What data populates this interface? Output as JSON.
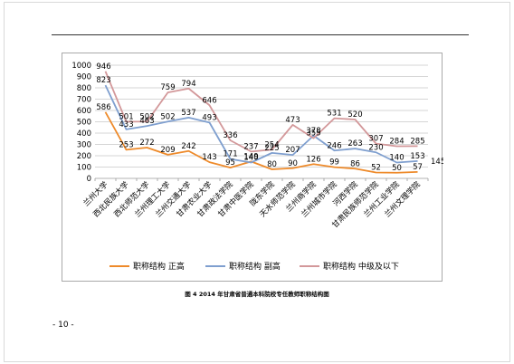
{
  "page": {
    "caption": "图 4  2014 年甘肃省普通本科院校专任教师职称结构图",
    "page_number": "- 10 -"
  },
  "chart_data": {
    "type": "line",
    "title": "",
    "xlabel": "",
    "ylabel": "",
    "ylim": [
      0,
      1000
    ],
    "yticks": [
      0,
      100,
      200,
      300,
      400,
      500,
      600,
      700,
      800,
      900,
      1000
    ],
    "grid": true,
    "legend_position": "bottom",
    "categories": [
      "兰州大学",
      "西北民族大学",
      "西北师范大学",
      "兰州理工大学",
      "兰州交通大学",
      "甘肃农业大学",
      "甘肃政法学院",
      "甘肃中医学院",
      "陇东学院",
      "天水师范学院",
      "兰州商学院",
      "兰州城市学院",
      "河西学院",
      "甘肃民族师范学院",
      "兰州工业学院",
      "兰州文理学院"
    ],
    "series": [
      {
        "name": "职称结构 正高",
        "color": "#ee8a2a",
        "values": [
          586,
          253,
          272,
          209,
          242,
          143,
          95,
          149,
          80,
          90,
          126,
          99,
          86,
          52,
          50,
          57
        ]
      },
      {
        "name": "职称结构 副高",
        "color": "#7f9fcf",
        "values": [
          823,
          433,
          463,
          502,
          537,
          493,
          171,
          140,
          225,
          207,
          378,
          246,
          263,
          230,
          140,
          153
        ]
      },
      {
        "name": "职称结构 中级及以下",
        "color": "#d3989a",
        "values": [
          946,
          501,
          502,
          759,
          794,
          646,
          336,
          237,
          254,
          473,
          355,
          531,
          520,
          307,
          284,
          285
        ]
      }
    ],
    "label_texts": {
      "s0": [
        "586",
        "253",
        "272",
        "209",
        "242",
        "143",
        "95",
        "149",
        "80",
        "90",
        "126",
        "99",
        "86",
        "52",
        "50",
        "57"
      ],
      "s1": [
        "823",
        "433",
        "463",
        "502",
        "537",
        "493",
        "171",
        "140",
        "225",
        "207",
        "378",
        "246",
        "263",
        "230",
        "140",
        "153"
      ],
      "s2": [
        "946",
        "501",
        "502",
        "759",
        "794",
        "646",
        "336",
        "237",
        "254",
        "473",
        "355",
        "531",
        "520",
        "307",
        "284",
        "285"
      ]
    },
    "last_label": "145"
  }
}
